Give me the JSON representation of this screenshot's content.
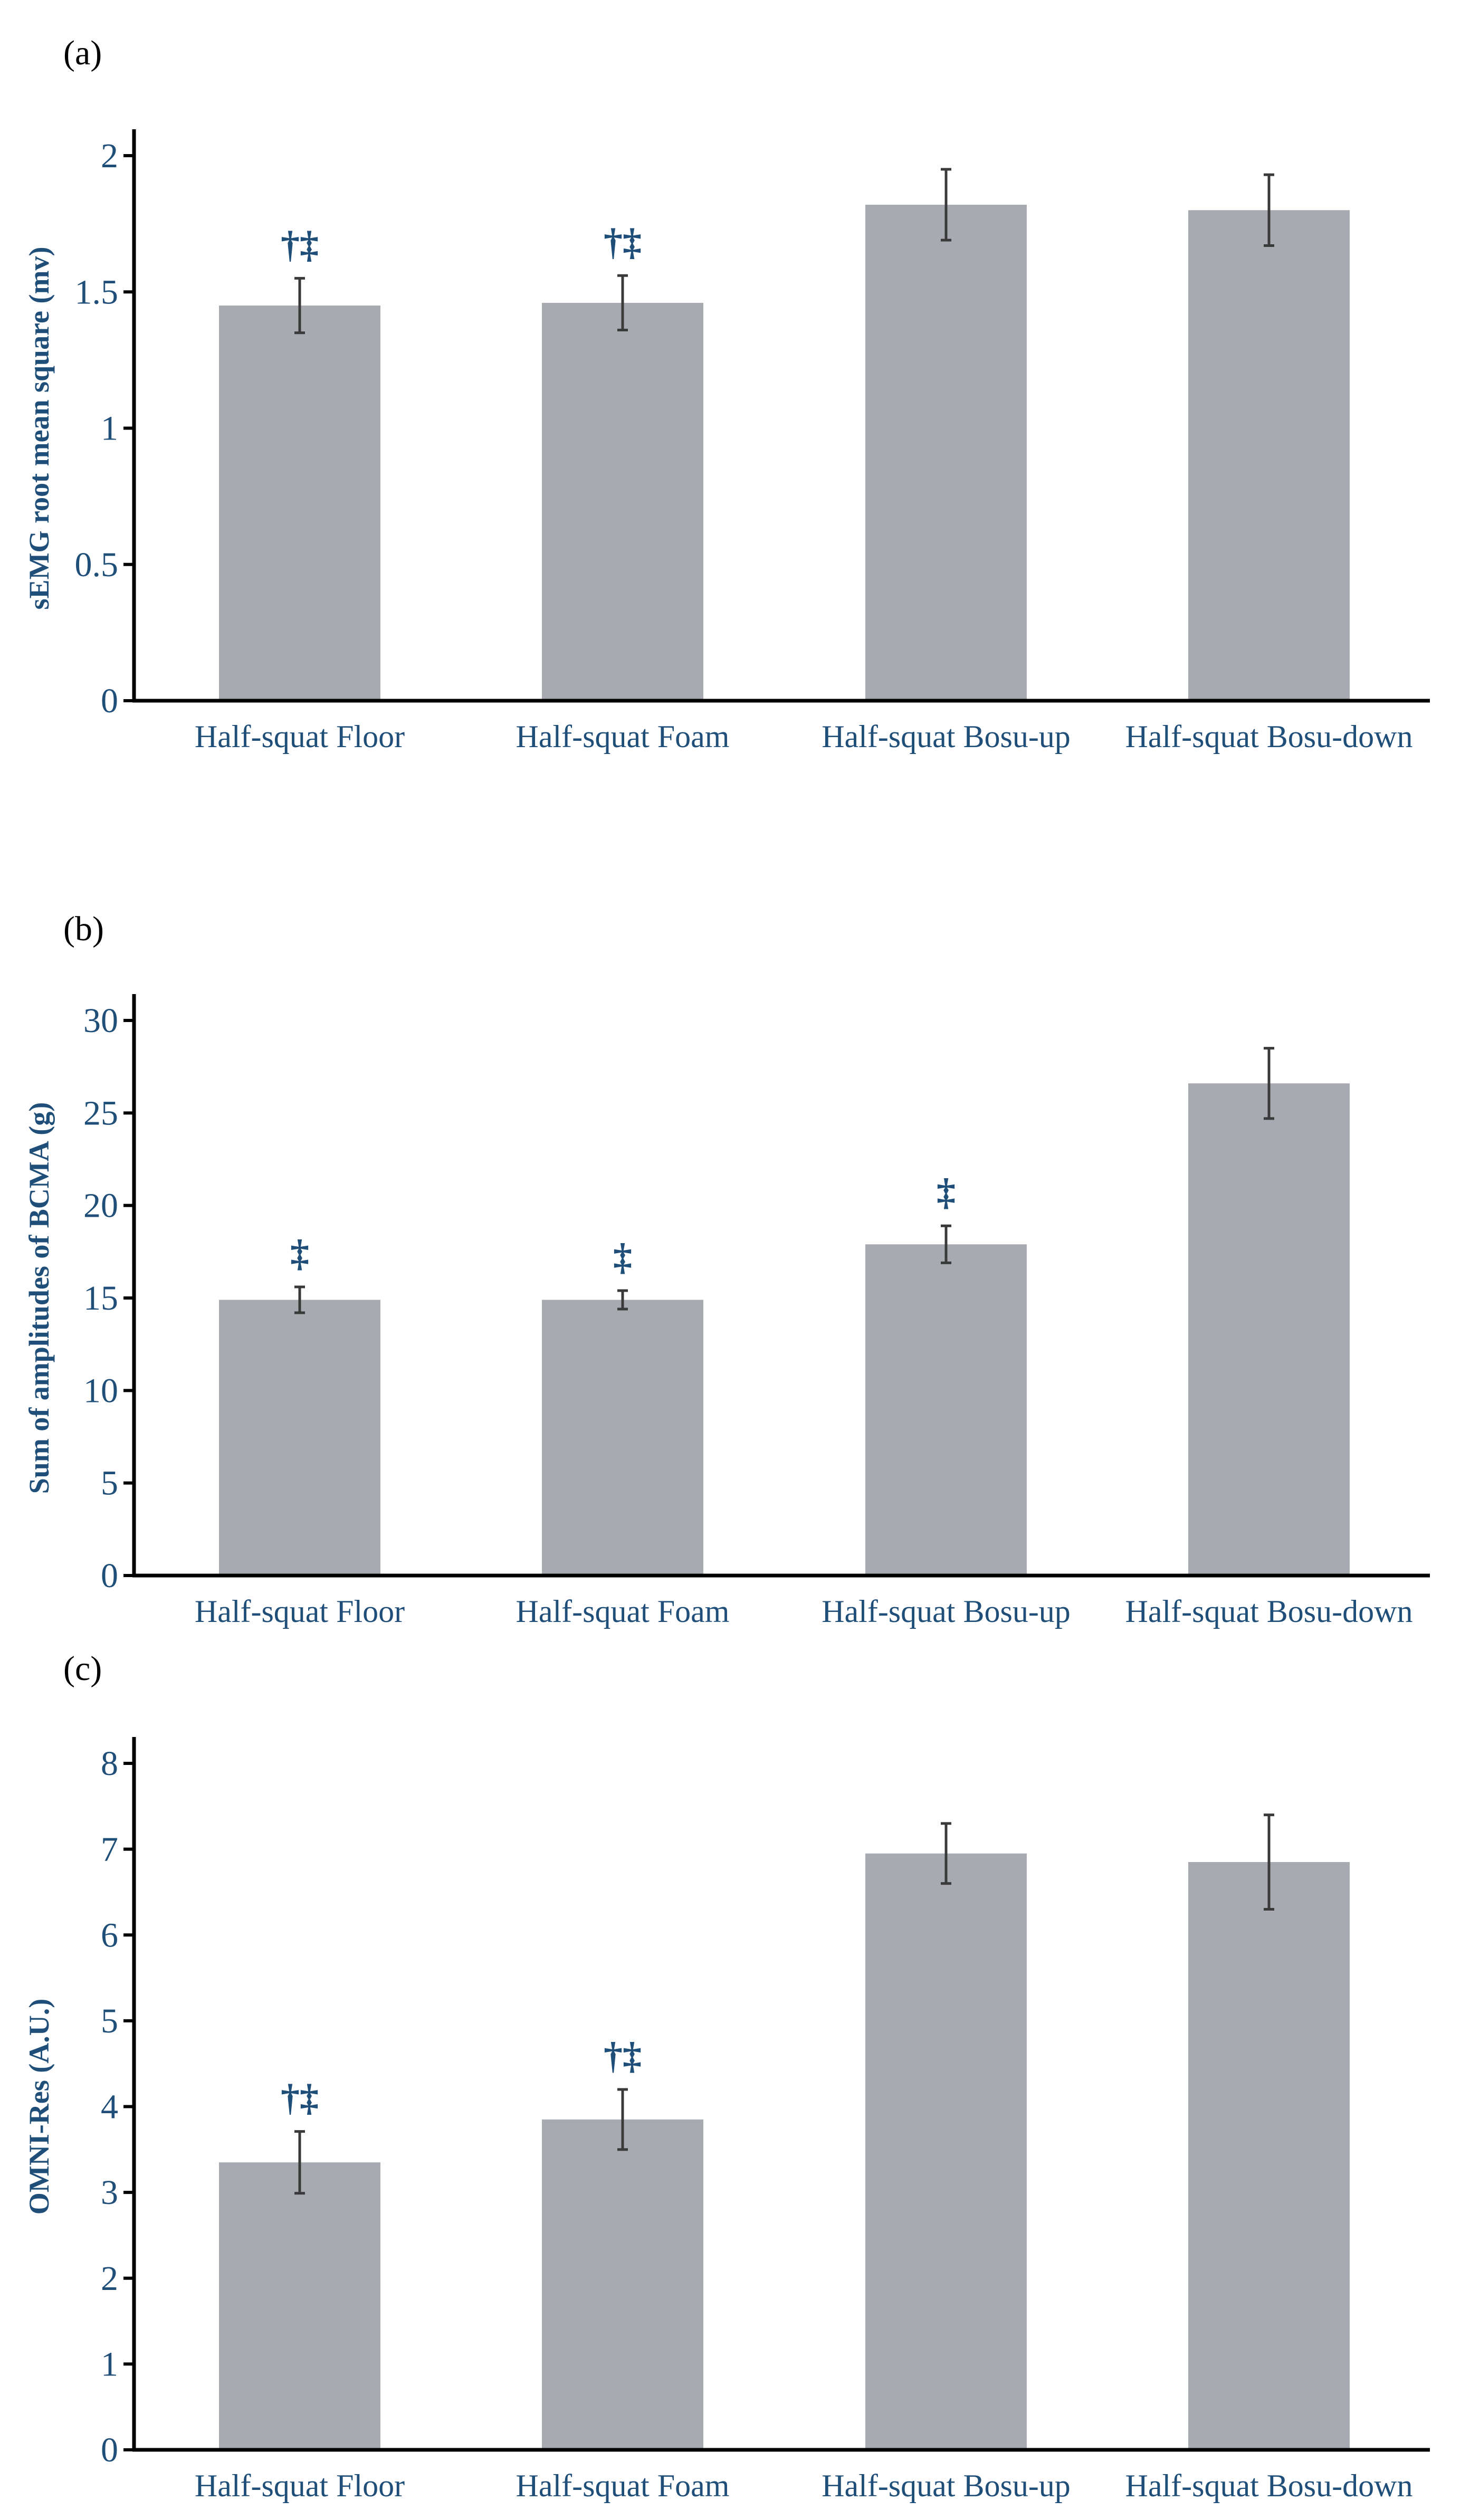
{
  "chart_data": [
    {
      "panel": "(a)",
      "type": "bar",
      "ylabel": "sEMG root mean square (mv)",
      "xlabel": "",
      "categories": [
        "Half-squat Floor",
        "Half-squat Foam",
        "Half-squat Bosu-up",
        "Half-squat Bosu-down"
      ],
      "values": [
        1.45,
        1.46,
        1.82,
        1.8
      ],
      "errors": [
        0.1,
        0.1,
        0.13,
        0.13
      ],
      "significance": [
        "†‡",
        "†‡",
        "",
        ""
      ],
      "ylim": [
        0,
        2
      ],
      "yticks": [
        0,
        0.5,
        1,
        1.5,
        2
      ],
      "ytick_labels": [
        "0",
        "0.5",
        "1",
        "1.5",
        "2"
      ]
    },
    {
      "panel": "(b)",
      "type": "bar",
      "ylabel": "Sum of amplitudes of BCMA (g)",
      "xlabel": "",
      "categories": [
        "Half-squat Floor",
        "Half-squat Foam",
        "Half-squat Bosu-up",
        "Half-squat Bosu-down"
      ],
      "values": [
        14.9,
        14.9,
        17.9,
        26.6
      ],
      "errors": [
        0.7,
        0.5,
        1.0,
        1.9
      ],
      "significance": [
        "‡",
        "‡",
        "‡",
        ""
      ],
      "ylim": [
        0,
        30
      ],
      "yticks": [
        0,
        5,
        10,
        15,
        20,
        25,
        30
      ],
      "ytick_labels": [
        "0",
        "5",
        "10",
        "15",
        "20",
        "25",
        "30"
      ]
    },
    {
      "panel": "(c)",
      "type": "bar",
      "ylabel": "OMNI-Res (A.U.)",
      "xlabel": "",
      "categories": [
        "Half-squat Floor",
        "Half-squat Foam",
        "Half-squat Bosu-up",
        "Half-squat Bosu-down"
      ],
      "values": [
        3.35,
        3.85,
        6.95,
        6.85
      ],
      "errors": [
        0.36,
        0.35,
        0.35,
        0.55
      ],
      "significance": [
        "†‡",
        "†‡",
        "",
        ""
      ],
      "ylim": [
        0,
        8
      ],
      "yticks": [
        0,
        1,
        2,
        3,
        4,
        5,
        6,
        7,
        8
      ],
      "ytick_labels": [
        "0",
        "1",
        "2",
        "3",
        "4",
        "5",
        "6",
        "7",
        "8"
      ]
    }
  ]
}
